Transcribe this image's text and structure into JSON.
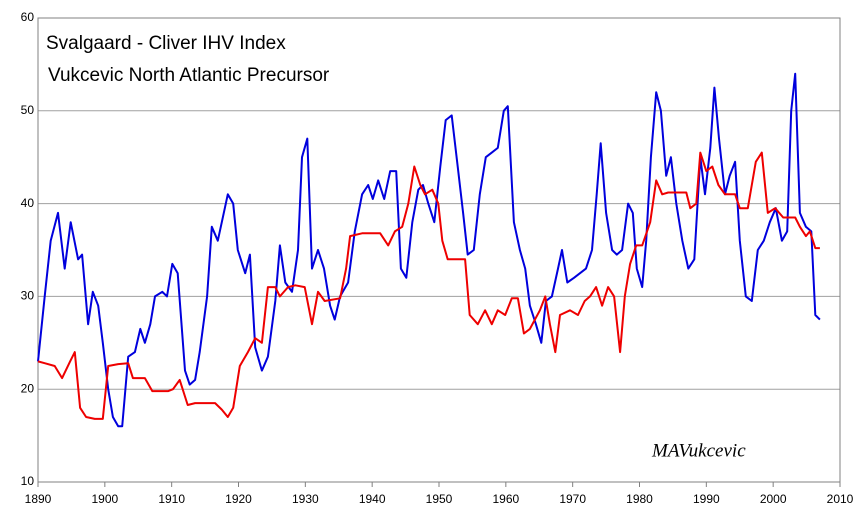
{
  "chart_data": {
    "type": "line",
    "annotations": [
      "MAVukcevic"
    ],
    "xlim": [
      1890,
      2010
    ],
    "xticks": [
      1890,
      1900,
      1910,
      1920,
      1930,
      1940,
      1950,
      1960,
      1970,
      1980,
      1990,
      2000,
      2010
    ],
    "ylim": [
      10,
      60
    ],
    "yticks": [
      10,
      20,
      30,
      40,
      50,
      60
    ],
    "grid": true,
    "series": [
      {
        "name": "Svalgaard -  Cliver IHV Index",
        "color": "#0000dd",
        "x": [
          1890.0,
          1891.0,
          1891.9,
          1893.0,
          1894.0,
          1894.9,
          1896.0,
          1896.6,
          1897.5,
          1898.2,
          1899.0,
          1899.7,
          1900.5,
          1901.2,
          1902.0,
          1902.6,
          1903.5,
          1904.5,
          1905.3,
          1906.0,
          1906.8,
          1907.5,
          1908.6,
          1909.3,
          1910.1,
          1910.9,
          1912.0,
          1912.7,
          1913.5,
          1914.2,
          1915.3,
          1916.0,
          1916.9,
          1917.5,
          1918.4,
          1919.2,
          1919.9,
          1921.0,
          1921.7,
          1922.5,
          1923.5,
          1924.4,
          1925.5,
          1926.2,
          1927.0,
          1928.0,
          1928.9,
          1929.5,
          1930.3,
          1931.0,
          1931.9,
          1932.8,
          1933.7,
          1934.4,
          1935.2,
          1936.4,
          1937.4,
          1938.5,
          1939.4,
          1940.1,
          1940.9,
          1941.8,
          1942.7,
          1943.6,
          1944.3,
          1945.1,
          1946.0,
          1946.9,
          1947.6,
          1948.4,
          1949.3,
          1950.2,
          1951.0,
          1951.9,
          1952.8,
          1953.6,
          1954.3,
          1955.2,
          1956.1,
          1957.0,
          1957.9,
          1958.8,
          1959.7,
          1960.3,
          1961.2,
          1962.1,
          1962.9,
          1963.6,
          1964.5,
          1965.3,
          1966.0,
          1966.9,
          1967.8,
          1968.4,
          1969.2,
          1970.2,
          1971.1,
          1972.0,
          1972.9,
          1973.6,
          1974.2,
          1975.0,
          1975.9,
          1976.6,
          1977.4,
          1978.3,
          1979.0,
          1979.6,
          1980.4,
          1981.0,
          1981.7,
          1982.5,
          1983.2,
          1984.0,
          1984.7,
          1985.5,
          1986.4,
          1987.3,
          1988.2,
          1989.1,
          1989.8,
          1990.6,
          1991.2,
          1991.9,
          1992.8,
          1993.5,
          1994.3,
          1995.0,
          1995.9,
          1996.8,
          1997.7,
          1998.6,
          1999.5,
          2000.4,
          2001.3,
          2002.1,
          2002.7,
          2003.3,
          2004.0,
          2004.9,
          2005.7,
          2006.3,
          2007.0
        ],
        "values": [
          23,
          30,
          36,
          39,
          33,
          38,
          34,
          34.5,
          27,
          30.5,
          29,
          25,
          20,
          17,
          16,
          16,
          23.5,
          24,
          26.5,
          25,
          27,
          30,
          30.5,
          30,
          33.5,
          32.5,
          22,
          20.5,
          21,
          24,
          30,
          37.5,
          36,
          38,
          41,
          40,
          35,
          32.5,
          34.5,
          24.5,
          22,
          23.5,
          29.5,
          35.5,
          31.5,
          30.5,
          35,
          45,
          47,
          33,
          35,
          33,
          29,
          27.5,
          30,
          31.5,
          37,
          41,
          42,
          40.5,
          42.5,
          40.5,
          43.5,
          43.5,
          33,
          32,
          38,
          41.5,
          42,
          40,
          38,
          44,
          49,
          49.5,
          44,
          39,
          34.5,
          35,
          41,
          45,
          45.5,
          46,
          50,
          50.5,
          38,
          35,
          33,
          29,
          27,
          25,
          29.5,
          30,
          33,
          35,
          31.5,
          32,
          32.5,
          33,
          35,
          41,
          46.5,
          39,
          35,
          34.5,
          35,
          40,
          39,
          33,
          31,
          36,
          45,
          52,
          50,
          43,
          45,
          40,
          36,
          33,
          34,
          45,
          41,
          46,
          52.5,
          47,
          41,
          43,
          44.5,
          36,
          30,
          29.5,
          35,
          36,
          38,
          39.5,
          36,
          37,
          50,
          54,
          39,
          37.5,
          37,
          28,
          27.5
        ]
      },
      {
        "name": "Vukcevic North Atlantic Precursor",
        "color": "#ee0000",
        "x": [
          1890.0,
          1891.0,
          1892.5,
          1893.6,
          1894.8,
          1895.5,
          1896.3,
          1897.2,
          1898.5,
          1899.7,
          1900.5,
          1902.0,
          1903.5,
          1904.2,
          1906.0,
          1907.1,
          1909.5,
          1910.2,
          1911.2,
          1912.4,
          1913.5,
          1916.5,
          1917.5,
          1918.4,
          1919.2,
          1920.2,
          1921.4,
          1922.5,
          1923.5,
          1924.4,
          1925.5,
          1926.2,
          1927.4,
          1928.5,
          1929.9,
          1931.0,
          1931.9,
          1932.9,
          1935.2,
          1936.1,
          1936.7,
          1938.5,
          1941.2,
          1942.4,
          1943.4,
          1944.5,
          1945.4,
          1946.3,
          1947.2,
          1947.9,
          1949.0,
          1949.9,
          1950.5,
          1951.3,
          1953.9,
          1954.6,
          1955.8,
          1956.9,
          1957.9,
          1958.8,
          1959.9,
          1960.9,
          1961.8,
          1962.7,
          1963.6,
          1965.1,
          1965.9,
          1966.6,
          1967.4,
          1968.1,
          1969.6,
          1970.8,
          1971.8,
          1972.6,
          1973.5,
          1974.4,
          1975.3,
          1976.2,
          1977.1,
          1977.8,
          1978.6,
          1979.5,
          1980.4,
          1981.6,
          1982.5,
          1983.4,
          1984.3,
          1987.0,
          1987.6,
          1988.5,
          1989.1,
          1990.0,
          1990.9,
          1991.8,
          1992.8,
          1994.3,
          1995.0,
          1996.2,
          1996.8,
          1997.4,
          1998.3,
          1999.2,
          2000.3,
          2001.5,
          2003.3,
          2004.0,
          2004.9,
          2005.5,
          2006.3,
          2007.0
        ],
        "values": [
          23,
          22.8,
          22.5,
          21.2,
          23,
          24,
          18,
          17,
          16.8,
          16.8,
          22.5,
          22.7,
          22.8,
          21.2,
          21.2,
          19.8,
          19.8,
          20,
          21,
          18.3,
          18.5,
          18.5,
          17.8,
          17,
          18,
          22.5,
          24,
          25.5,
          25,
          31,
          31,
          30,
          31,
          31.2,
          31,
          27,
          30.5,
          29.5,
          29.8,
          33,
          36.5,
          36.8,
          36.8,
          35.5,
          37,
          37.5,
          40,
          44,
          42,
          41,
          41.5,
          40,
          36,
          34,
          34,
          28,
          27,
          28.5,
          27,
          28.5,
          28,
          29.8,
          29.8,
          26,
          26.5,
          28.5,
          30,
          27,
          24,
          28,
          28.5,
          28,
          29.5,
          30,
          31,
          29,
          31,
          30,
          24,
          30,
          33.5,
          35.5,
          35.5,
          38,
          42.5,
          41,
          41.2,
          41.2,
          39.5,
          40,
          45.5,
          43.5,
          44,
          42,
          41,
          41,
          39.5,
          39.5,
          42,
          44.5,
          45.5,
          39,
          39.5,
          38.5,
          38.5,
          37.5,
          36.5,
          37,
          35.2,
          35.2
        ]
      }
    ]
  }
}
